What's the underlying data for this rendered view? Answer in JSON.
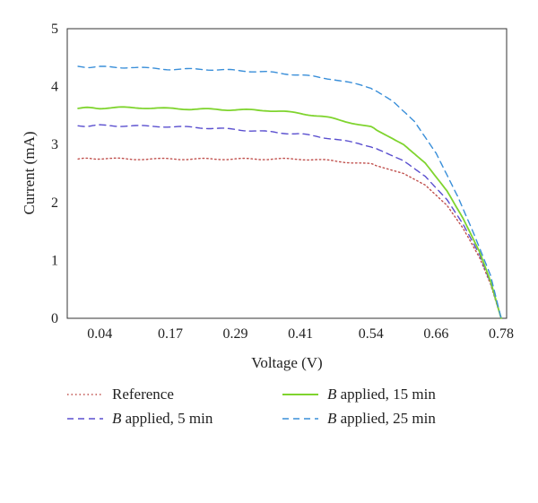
{
  "chart_data": {
    "type": "line",
    "title": "",
    "xlabel": "Voltage (V)",
    "ylabel": "Current (mA)",
    "x_tick_labels": [
      "0.04",
      "0.17",
      "0.29",
      "0.41",
      "0.54",
      "0.66",
      "0.78"
    ],
    "y_tick_labels": [
      "0",
      "1",
      "2",
      "3",
      "4",
      "5"
    ],
    "xlim": [
      -0.02,
      0.79
    ],
    "ylim": [
      0,
      5
    ],
    "grid": false,
    "legend_position": "bottom",
    "series": [
      {
        "name": "Reference",
        "label_italic_prefix": "",
        "label_text": "Reference",
        "color": "#c0504d",
        "style": "dotted",
        "x": [
          0.0,
          0.04,
          0.1,
          0.17,
          0.23,
          0.29,
          0.35,
          0.41,
          0.47,
          0.54,
          0.6,
          0.64,
          0.68,
          0.71,
          0.74,
          0.76,
          0.78
        ],
        "y": [
          2.75,
          2.76,
          2.75,
          2.75,
          2.75,
          2.75,
          2.75,
          2.75,
          2.72,
          2.66,
          2.5,
          2.3,
          1.95,
          1.55,
          1.05,
          0.6,
          0.0
        ]
      },
      {
        "name": "B applied, 5 min",
        "label_italic_prefix": "B",
        "label_text": " applied, 5 min",
        "color": "#5a4fcf",
        "style": "dashed",
        "x": [
          0.0,
          0.04,
          0.1,
          0.17,
          0.23,
          0.29,
          0.35,
          0.41,
          0.47,
          0.54,
          0.6,
          0.64,
          0.68,
          0.71,
          0.74,
          0.76,
          0.78
        ],
        "y": [
          3.32,
          3.33,
          3.32,
          3.31,
          3.29,
          3.26,
          3.22,
          3.18,
          3.1,
          2.97,
          2.72,
          2.45,
          2.05,
          1.62,
          1.1,
          0.62,
          0.0
        ]
      },
      {
        "name": "B applied, 15 min",
        "label_italic_prefix": "B",
        "label_text": " applied, 15 min",
        "color": "#7fd42e",
        "style": "solid",
        "x": [
          0.0,
          0.04,
          0.1,
          0.17,
          0.23,
          0.29,
          0.35,
          0.41,
          0.47,
          0.54,
          0.6,
          0.64,
          0.68,
          0.71,
          0.74,
          0.76,
          0.78
        ],
        "y": [
          3.63,
          3.63,
          3.64,
          3.62,
          3.61,
          3.6,
          3.59,
          3.54,
          3.45,
          3.3,
          3.0,
          2.68,
          2.2,
          1.72,
          1.15,
          0.65,
          0.0
        ]
      },
      {
        "name": "B applied, 25 min",
        "label_italic_prefix": "B",
        "label_text": " applied, 25 min",
        "color": "#3a8fd9",
        "style": "dashed",
        "x": [
          0.0,
          0.04,
          0.1,
          0.17,
          0.23,
          0.29,
          0.35,
          0.41,
          0.47,
          0.54,
          0.58,
          0.62,
          0.66,
          0.7,
          0.73,
          0.76,
          0.78
        ],
        "y": [
          4.34,
          4.34,
          4.33,
          4.3,
          4.3,
          4.28,
          4.25,
          4.2,
          4.13,
          3.98,
          3.75,
          3.4,
          2.85,
          2.1,
          1.45,
          0.75,
          0.0
        ]
      }
    ]
  }
}
